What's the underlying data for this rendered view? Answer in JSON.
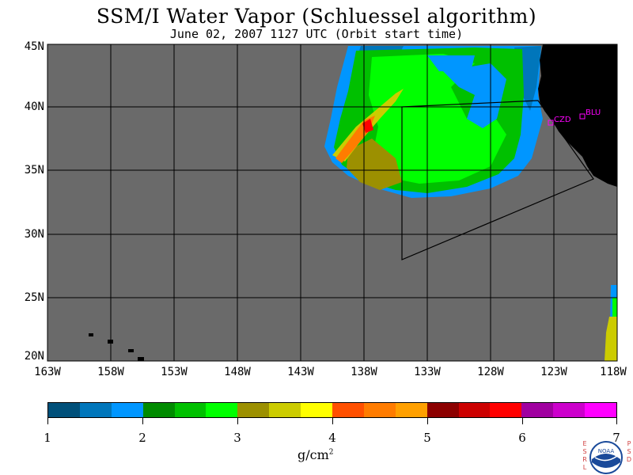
{
  "title": "SSM/I Water Vapor (Schluessel algorithm)",
  "subtitle": "June 02, 2007  1127 UTC  (Orbit start time)",
  "lat_labels": [
    "45N",
    "40N",
    "35N",
    "30N",
    "25N",
    "20N"
  ],
  "lon_labels": [
    "163W",
    "158W",
    "153W",
    "148W",
    "143W",
    "138W",
    "133W",
    "128W",
    "123W",
    "118W"
  ],
  "stations": [
    {
      "name": "CZD"
    },
    {
      "name": "BLU"
    }
  ],
  "colorbar": {
    "colors": [
      "#00507a",
      "#0076bb",
      "#0096ff",
      "#008b00",
      "#00c000",
      "#00ff00",
      "#9c9000",
      "#cccc00",
      "#ffff00",
      "#ff5000",
      "#ff7c00",
      "#ffa000",
      "#8c0000",
      "#cc0000",
      "#ff0000",
      "#a000a0",
      "#cc00cc",
      "#ff00ff"
    ],
    "ticks": [
      "1",
      "2",
      "3",
      "4",
      "5",
      "6",
      "7"
    ],
    "unit": "g/cm",
    "unit_sup": "2"
  },
  "colors": {
    "no_data": "#6a6a6a",
    "land": "#000000",
    "station": "#ff00ff"
  },
  "logo": {
    "left_letters": [
      "E",
      "S",
      "R",
      "L"
    ],
    "right_letters": [
      "P",
      "S",
      "D"
    ],
    "text": "NOAA"
  }
}
